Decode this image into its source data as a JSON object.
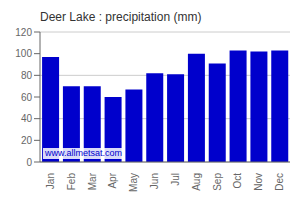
{
  "chart_data": {
    "type": "bar",
    "title": "Deer Lake : precipitation (mm)",
    "categories": [
      "Jan",
      "Feb",
      "Mar",
      "Apr",
      "May",
      "Jun",
      "Jul",
      "Aug",
      "Sep",
      "Oct",
      "Nov",
      "Dec"
    ],
    "values": [
      97,
      70,
      70,
      60,
      67,
      82,
      81,
      100,
      91,
      103,
      102,
      103
    ],
    "color": "#0000cc",
    "ylim": [
      0,
      120
    ],
    "yticks": [
      0,
      20,
      40,
      60,
      80,
      100,
      120
    ],
    "grid": true,
    "annotations": [
      {
        "text": "www.allmetsat.com",
        "color": "#0000cc"
      }
    ]
  }
}
